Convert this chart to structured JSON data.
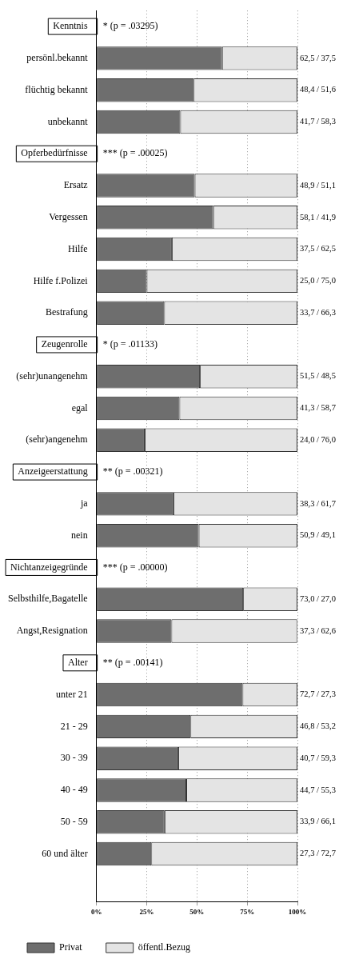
{
  "chart_data": {
    "type": "bar",
    "orientation": "horizontal",
    "stacked": true,
    "categories": [
      "Kenntnis",
      "persönl.bekannt",
      "flüchtig bekannt",
      "unbekannt",
      "Opferbedürfnisse",
      "Ersatz",
      "Vergessen",
      "Hilfe",
      "Hilfe f.Polizei",
      "Bestrafung",
      "Zeugenrolle",
      "(sehr)unangenehm",
      "egal",
      "(sehr)angenehm",
      "Anzeigeerstattung",
      "ja",
      "nein",
      "Nichtanzeigegründe",
      "Selbsthilfe,Bagatelle",
      "Angst,Resignation",
      "Alter",
      "unter 21",
      "21 - 29",
      "30 - 39",
      "40 - 49",
      "50 - 59",
      "60 und älter",
      null
    ],
    "series": [
      {
        "name": "Privat",
        "color": "#6e6e6e",
        "values": [
          null,
          62.5,
          48.4,
          41.7,
          null,
          48.9,
          58.1,
          37.5,
          25.0,
          33.7,
          null,
          51.5,
          41.3,
          24.0,
          null,
          38.3,
          50.9,
          null,
          73.0,
          37.3,
          null,
          72.7,
          46.8,
          40.7,
          44.7,
          33.9,
          27.3,
          null
        ]
      },
      {
        "name": "öffentl.Bezug",
        "color": "#e4e4e4",
        "values": [
          null,
          37.5,
          51.6,
          58.3,
          null,
          51.1,
          41.9,
          62.5,
          75.0,
          66.3,
          null,
          48.5,
          58.7,
          76.0,
          null,
          61.7,
          49.1,
          null,
          27.0,
          62.6,
          null,
          27.3,
          53.2,
          59.3,
          55.3,
          66.1,
          72.7,
          null
        ],
        "value_labels": [
          null,
          "62,5 / 37,5",
          "48,4 / 51,6",
          "41,7 / 58,3",
          null,
          "48,9 / 51,1",
          "58,1 / 41,9",
          "37,5 / 62,5",
          "25,0 / 75,0",
          "33,7 / 66,3",
          null,
          "51,5 / 48,5",
          "41,3 / 58,7",
          "24,0 / 76,0",
          null,
          "38,3 / 61,7",
          "50,9 / 49,1",
          null,
          "73,0 / 27,0",
          "37,3 / 62,6",
          null,
          "72,7 / 27,3",
          "46,8 / 53,2",
          "40,7 / 59,3",
          "44,7 / 55,3",
          "33,9 / 66,1",
          "27,3 / 72,7",
          null
        ]
      }
    ],
    "xlim": [
      0,
      100
    ],
    "xticks": [
      {
        "value": 0,
        "label": "0%"
      },
      {
        "value": 25,
        "label": "25%"
      },
      {
        "value": 50,
        "label": "50%"
      },
      {
        "value": 75,
        "label": "75%"
      },
      {
        "value": 100,
        "label": "100%"
      }
    ],
    "annotations": [
      "* (p = .03295)",
      "*** (p = .00025)",
      "* (p = .01133)",
      "** (p = .00321)",
      "*** (p = .00000)",
      "** (p = .00141)"
    ],
    "grid": "x",
    "line_style": "dotted",
    "legend": "bottom left"
  }
}
